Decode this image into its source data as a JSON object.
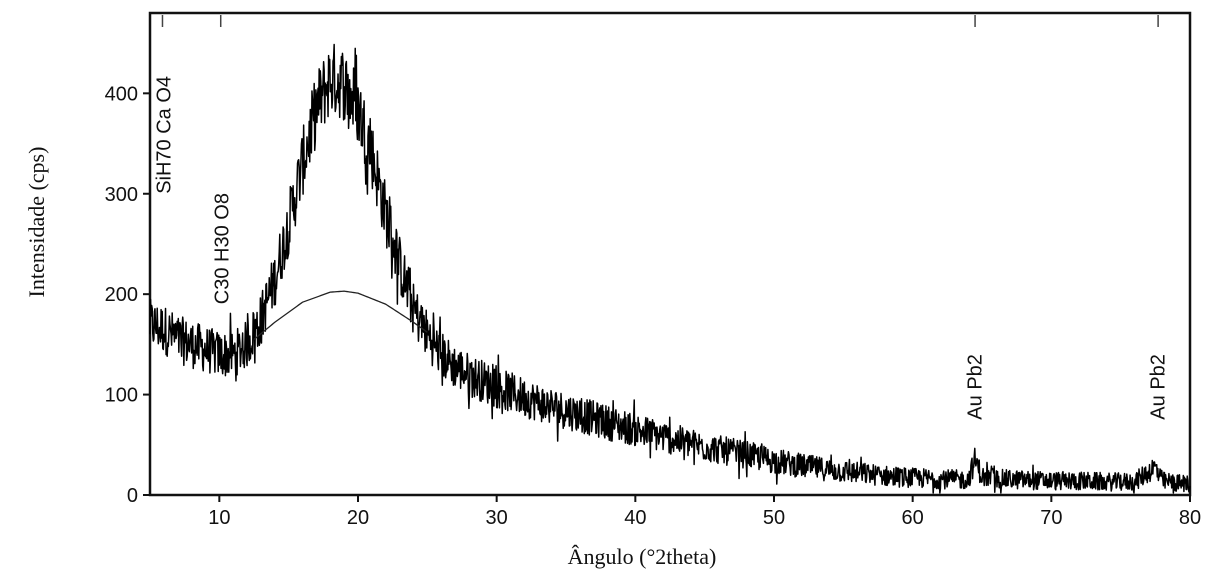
{
  "chart_data": {
    "type": "line",
    "title": "",
    "xlabel": "Ângulo (°2theta)",
    "ylabel": "Intensidade (cps)",
    "xlim": [
      5,
      80
    ],
    "ylim": [
      0,
      480
    ],
    "x_ticks": [
      10,
      20,
      30,
      40,
      50,
      60,
      70,
      80
    ],
    "y_ticks": [
      0,
      100,
      200,
      300,
      400
    ],
    "grid": false,
    "series": [
      {
        "type": "noisy-line",
        "x": [
          5,
          6,
          7,
          8,
          9,
          10,
          11,
          12,
          13,
          14,
          15,
          16,
          17,
          18,
          19,
          20,
          21,
          22,
          23,
          24,
          25,
          26,
          27,
          28,
          30,
          32,
          34,
          36,
          38,
          40,
          42,
          44,
          46,
          48,
          50,
          52,
          54,
          56,
          58,
          60,
          62,
          64,
          64.5,
          65,
          66,
          68,
          70,
          72,
          74,
          76,
          77.5,
          78,
          79,
          80
        ],
        "values": [
          170,
          165,
          155,
          150,
          145,
          140,
          140,
          150,
          175,
          215,
          270,
          330,
          385,
          415,
          410,
          385,
          340,
          280,
          230,
          185,
          160,
          140,
          128,
          120,
          107,
          97,
          88,
          80,
          72,
          65,
          58,
          51,
          45,
          40,
          34,
          29,
          25,
          22,
          19,
          17,
          16,
          15,
          35,
          18,
          16,
          15,
          14,
          14,
          13,
          13,
          28,
          14,
          12,
          11
        ]
      },
      {
        "type": "smooth-background",
        "x": [
          12.5,
          14,
          16,
          18,
          19,
          20,
          22,
          24,
          25
        ],
        "values": [
          155,
          172,
          192,
          202,
          203,
          201,
          190,
          172,
          162
        ]
      }
    ],
    "annotations": [
      "SiH70 Ca O4",
      "C30 H30 O8",
      "Au Pb2",
      "Au Pb2"
    ]
  }
}
